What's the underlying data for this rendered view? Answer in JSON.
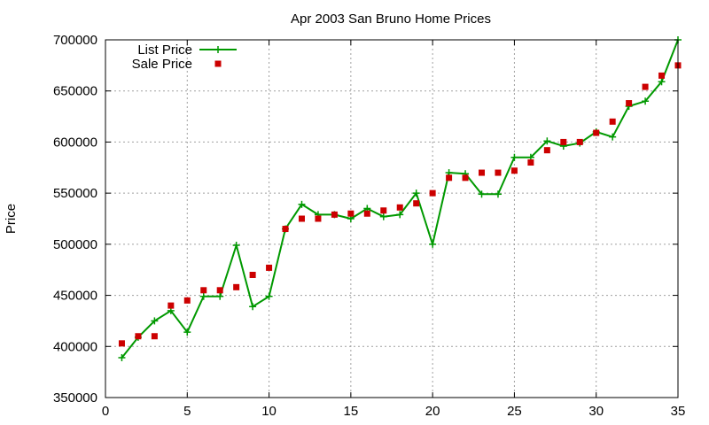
{
  "chart_data": {
    "type": "line",
    "title": "Apr 2003 San Bruno Home Prices",
    "xlabel": "",
    "ylabel": "Price",
    "xlim": [
      0,
      35
    ],
    "ylim": [
      350000,
      700000
    ],
    "xticks": [
      0,
      5,
      10,
      15,
      20,
      25,
      30,
      35
    ],
    "yticks": [
      350000,
      400000,
      450000,
      500000,
      550000,
      600000,
      650000,
      700000
    ],
    "xtick_labels": [
      "0",
      "5",
      "10",
      "15",
      "20",
      "25",
      "30",
      "35"
    ],
    "ytick_labels": [
      "350000",
      "400000",
      "450000",
      "500000",
      "550000",
      "600000",
      "650000",
      "700000"
    ],
    "grid": true,
    "legend_position": "top-left",
    "series": [
      {
        "name": "List Price",
        "style": "line-with-plus-markers",
        "color": "#009900",
        "x": [
          1,
          2,
          3,
          4,
          5,
          6,
          7,
          8,
          9,
          10,
          11,
          12,
          13,
          14,
          15,
          16,
          17,
          18,
          19,
          20,
          21,
          22,
          23,
          24,
          25,
          26,
          27,
          28,
          29,
          30,
          31,
          32,
          33,
          34,
          35
        ],
        "values": [
          389000,
          409000,
          425000,
          435000,
          414000,
          449000,
          449000,
          499000,
          439000,
          449000,
          515000,
          539000,
          529000,
          529000,
          525000,
          535000,
          527000,
          529000,
          550000,
          500000,
          570000,
          569000,
          549000,
          549000,
          585000,
          585000,
          601000,
          596000,
          599000,
          610000,
          605000,
          635000,
          640000,
          659000,
          700000
        ]
      },
      {
        "name": "Sale Price",
        "style": "square-markers",
        "color": "#cc0000",
        "x": [
          1,
          2,
          3,
          4,
          5,
          6,
          7,
          8,
          9,
          10,
          11,
          12,
          13,
          14,
          15,
          16,
          17,
          18,
          19,
          20,
          21,
          22,
          23,
          24,
          25,
          26,
          27,
          28,
          29,
          30,
          31,
          32,
          33,
          34,
          35
        ],
        "values": [
          403000,
          410000,
          410000,
          440000,
          445000,
          455000,
          455000,
          458000,
          470000,
          477000,
          515000,
          525000,
          525000,
          529000,
          530000,
          530000,
          533000,
          536000,
          540000,
          550000,
          565000,
          565000,
          570000,
          570000,
          572000,
          580000,
          592000,
          600000,
          600000,
          609000,
          620000,
          638000,
          654000,
          665000,
          675000
        ]
      }
    ]
  }
}
